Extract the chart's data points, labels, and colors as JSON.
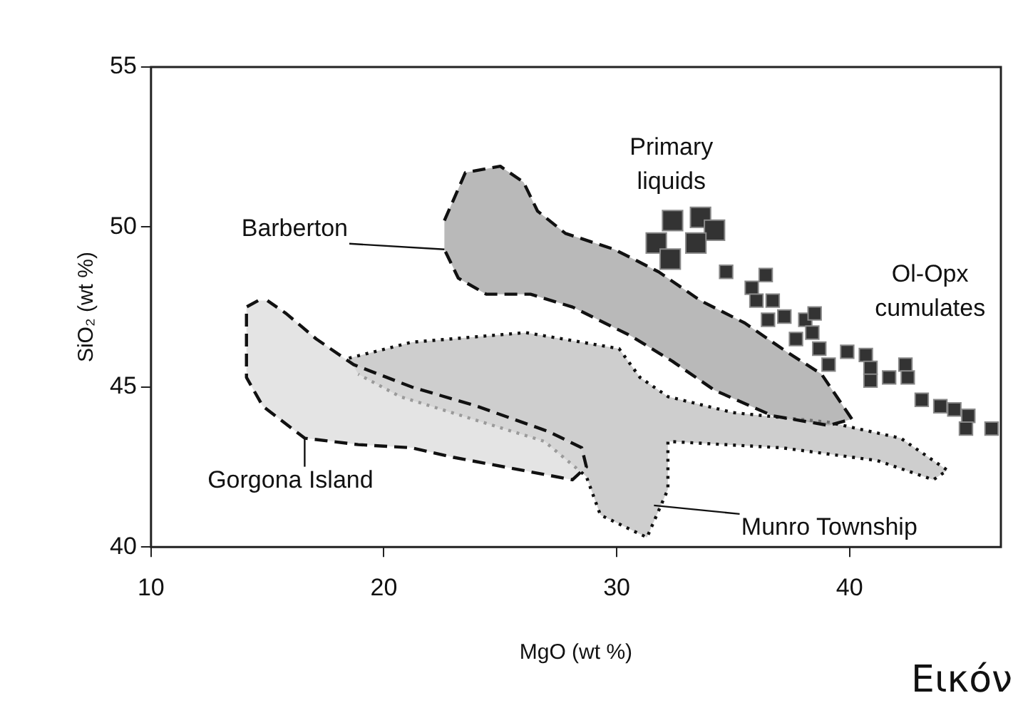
{
  "chart_data": {
    "type": "scatter",
    "xlabel": "MgO (wt %)",
    "ylabel": "SiO₂ (wt %)",
    "xlim": [
      10,
      46.5
    ],
    "ylim": [
      40,
      55
    ],
    "xticks": [
      10,
      20,
      30,
      40
    ],
    "yticks": [
      40,
      45,
      50,
      55
    ],
    "grid": false,
    "legend": false,
    "series": [
      {
        "type": "area",
        "color": "#b8b8b8",
        "line_style": "dotted",
        "x": [
          18.5,
          21.2,
          26.1,
          30.1,
          31.0,
          32.2,
          35.0,
          39.1,
          42.2,
          44.2,
          43.6,
          41.2,
          37.1,
          32.2,
          32.2,
          31.3,
          29.3,
          28.7,
          26.9,
          23.8,
          20.7,
          18.9
        ],
        "values": [
          45.9,
          46.4,
          46.7,
          46.2,
          45.3,
          44.7,
          44.2,
          43.9,
          43.4,
          42.4,
          42.1,
          42.7,
          43.1,
          43.3,
          41.8,
          40.3,
          41.0,
          42.2,
          43.3,
          44.0,
          44.7,
          45.4
        ]
      },
      {
        "type": "area",
        "color": "#d8d8d8",
        "line_style": "dashed",
        "x": [
          14.6,
          14.1,
          14.1,
          14.8,
          16.6,
          18.9,
          21.2,
          23.0,
          25.2,
          28.1,
          28.7,
          28.5,
          27.1,
          24.0,
          21.2,
          18.7,
          17.1,
          15.8,
          15.0
        ],
        "values": [
          47.7,
          47.5,
          45.3,
          44.4,
          43.4,
          43.2,
          43.1,
          42.8,
          42.5,
          42.1,
          42.5,
          43.1,
          43.6,
          44.4,
          45.0,
          45.7,
          46.5,
          47.3,
          47.7
        ]
      },
      {
        "type": "area",
        "color": "#9a9a9a",
        "line_style": "dashed",
        "x": [
          22.6,
          23.5,
          25.0,
          26.0,
          26.6,
          27.8,
          29.9,
          31.8,
          33.6,
          35.5,
          37.3,
          38.8,
          40.1,
          39.1,
          36.7,
          34.2,
          32.4,
          30.6,
          28.1,
          26.3,
          24.4,
          23.2,
          22.6
        ],
        "values": [
          50.2,
          51.7,
          51.9,
          51.4,
          50.5,
          49.8,
          49.3,
          48.6,
          47.7,
          47.0,
          46.1,
          45.4,
          44.0,
          43.8,
          44.1,
          44.9,
          45.8,
          46.6,
          47.5,
          47.9,
          47.9,
          48.4,
          49.3
        ]
      },
      {
        "type": "scatter",
        "marker": "square",
        "color": "#333333",
        "x": [
          32.4,
          33.6,
          34.2,
          31.7,
          33.4,
          32.3
        ],
        "values": [
          50.2,
          50.3,
          49.9,
          49.5,
          49.5,
          49.0
        ]
      },
      {
        "type": "scatter",
        "marker": "square",
        "color": "#333333",
        "x": [
          34.7,
          36.4,
          35.8,
          36.0,
          36.7,
          36.5,
          37.2,
          38.1,
          38.5,
          37.7,
          38.4,
          38.7,
          39.1,
          39.9,
          40.7,
          40.9,
          40.9,
          41.7,
          42.4,
          42.5,
          43.1,
          43.9,
          44.5,
          45.1,
          45.0,
          46.1
        ],
        "values": [
          48.6,
          48.5,
          48.1,
          47.7,
          47.7,
          47.1,
          47.2,
          47.1,
          47.3,
          46.5,
          46.7,
          46.2,
          45.7,
          46.1,
          46.0,
          45.6,
          45.2,
          45.3,
          45.7,
          45.3,
          44.6,
          44.4,
          44.3,
          44.1,
          43.7,
          43.7
        ]
      }
    ],
    "annotations": [
      {
        "text": "Primary liquids",
        "x": 32.9,
        "y": 50.6
      },
      {
        "text": "Ol-Opx cumulates",
        "x": 38.5,
        "y": 47.3
      },
      {
        "text": "Barberton",
        "x": 22.6,
        "y": 49.3
      },
      {
        "text": "Gorgona Island",
        "x": 16.6,
        "y": 43.4
      },
      {
        "text": "Munro Township",
        "x": 31.6,
        "y": 41.3
      },
      "Εικόν"
    ]
  }
}
